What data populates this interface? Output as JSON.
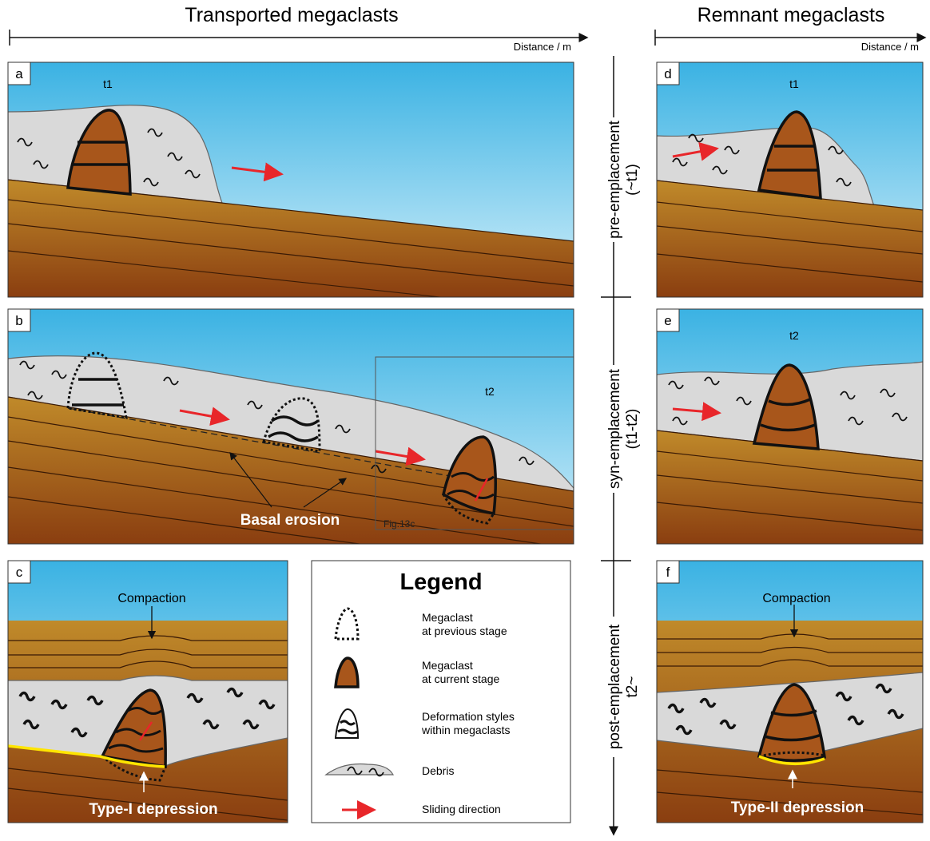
{
  "header": {
    "left_title": "Transported megaclasts",
    "left_axis": "Distance / m",
    "right_title": "Remnant megaclasts",
    "right_axis": "Distance / m"
  },
  "panels": {
    "a": {
      "label": "a",
      "time": "t1"
    },
    "b": {
      "label": "b",
      "time": "t2",
      "annotation": "Basal erosion",
      "reference": "Fig.13c"
    },
    "c": {
      "label": "c",
      "process": "Compaction",
      "result": "Type-I depression"
    },
    "d": {
      "label": "d",
      "time": "t1"
    },
    "e": {
      "label": "e",
      "time": "t2"
    },
    "f": {
      "label": "f",
      "process": "Compaction",
      "result": "Type-II depression"
    }
  },
  "stages": [
    {
      "name": "pre-emplacement",
      "time": "(~t1)"
    },
    {
      "name": "syn-emplacement",
      "time": "(t1-t2)"
    },
    {
      "name": "post-emplacement",
      "time": "t2~"
    }
  ],
  "legend": {
    "title": "Legend",
    "items": [
      [
        "Megaclast",
        "at previous stage"
      ],
      [
        "Megaclast",
        "at current stage"
      ],
      [
        "Deformation styles",
        "within megaclasts"
      ],
      [
        "Debris"
      ],
      [
        "Sliding direction"
      ]
    ]
  }
}
